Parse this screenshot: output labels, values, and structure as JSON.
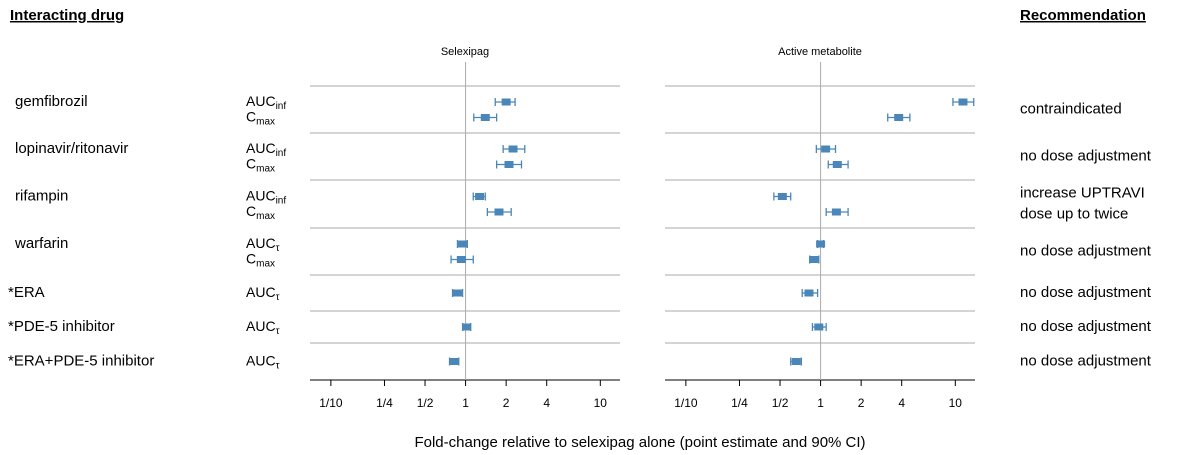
{
  "chart_data": {
    "type": "forest",
    "header_left": "Interacting drug",
    "header_right": "Recommendation",
    "xlabel": "Fold-change relative to selexipag alone (point estimate and 90% CI)",
    "color": "#4a86b8",
    "log_x": true,
    "panels": [
      {
        "title": "Selexipag",
        "xlim": [
          0.07,
          14
        ],
        "reference": 1,
        "xticks": [
          {
            "value": 0.1,
            "label": "1/10"
          },
          {
            "value": 0.25,
            "label": "1/4"
          },
          {
            "value": 0.5,
            "label": "1/2"
          },
          1,
          2,
          4,
          10
        ]
      },
      {
        "title": "Active metabolite",
        "xlim": [
          0.07,
          14
        ],
        "reference": 1,
        "xticks": [
          {
            "value": 0.1,
            "label": "1/10"
          },
          {
            "value": 0.25,
            "label": "1/4"
          },
          {
            "value": 0.5,
            "label": "1/2"
          },
          1,
          2,
          4,
          10
        ]
      }
    ],
    "rows": [
      {
        "drug": "gemfibrozil",
        "recommendation": [
          "contraindicated"
        ],
        "params": [
          {
            "label": "AUC",
            "sub": "inf",
            "values": [
              2.0,
              11.4
            ],
            "ci": [
              [
                1.66,
                2.33
              ],
              [
                9.6,
                13.7
              ]
            ]
          },
          {
            "label": "C",
            "sub": "max",
            "values": [
              1.4,
              3.8
            ],
            "ci": [
              [
                1.15,
                1.7
              ],
              [
                3.15,
                4.6
              ]
            ]
          }
        ]
      },
      {
        "drug": "lopinavir/ritonavir",
        "recommendation": [
          "no dose adjustment"
        ],
        "params": [
          {
            "label": "AUC",
            "sub": "inf",
            "values": [
              2.25,
              1.09
            ],
            "ci": [
              [
                1.9,
                2.75
              ],
              [
                0.93,
                1.29
              ]
            ]
          },
          {
            "label": "C",
            "sub": "max",
            "values": [
              2.1,
              1.33
            ],
            "ci": [
              [
                1.7,
                2.6
              ],
              [
                1.14,
                1.6
              ]
            ]
          }
        ]
      },
      {
        "drug": "rifampin",
        "recommendation": [
          "increase UPTRAVI",
          "dose up to twice"
        ],
        "params": [
          {
            "label": "AUC",
            "sub": "inf",
            "values": [
              1.27,
              0.52
            ],
            "ci": [
              [
                1.14,
                1.4
              ],
              [
                0.45,
                0.6
              ]
            ]
          },
          {
            "label": "C",
            "sub": "max",
            "values": [
              1.77,
              1.31
            ],
            "ci": [
              [
                1.45,
                2.18
              ],
              [
                1.1,
                1.6
              ]
            ]
          }
        ]
      },
      {
        "drug": "warfarin",
        "recommendation": [
          "no dose adjustment"
        ],
        "params": [
          {
            "label": "AUC",
            "sub": "τ",
            "values": [
              0.95,
              1.0
            ],
            "ci": [
              [
                0.87,
                1.03
              ],
              [
                0.95,
                1.05
              ]
            ]
          },
          {
            "label": "C",
            "sub": "max",
            "values": [
              0.93,
              0.9
            ],
            "ci": [
              [
                0.78,
                1.14
              ],
              [
                0.83,
                0.97
              ]
            ]
          }
        ]
      },
      {
        "drug": "*ERA",
        "recommendation": [
          "no dose adjustment"
        ],
        "params": [
          {
            "label": "AUC",
            "sub": "τ",
            "values": [
              0.87,
              0.82
            ],
            "ci": [
              [
                0.8,
                0.95
              ],
              [
                0.73,
                0.95
              ]
            ]
          }
        ]
      },
      {
        "drug": "*PDE-5 inhibitor",
        "recommendation": [
          "no dose adjustment"
        ],
        "params": [
          {
            "label": "AUC",
            "sub": "τ",
            "values": [
              1.02,
              0.97
            ],
            "ci": [
              [
                0.95,
                1.09
              ],
              [
                0.87,
                1.1
              ]
            ]
          }
        ]
      },
      {
        "drug": "*ERA+PDE-5 inhibitor",
        "recommendation": [
          "no dose adjustment"
        ],
        "params": [
          {
            "label": "AUC",
            "sub": "τ",
            "values": [
              0.82,
              0.66
            ],
            "ci": [
              [
                0.76,
                0.89
              ],
              [
                0.6,
                0.72
              ]
            ]
          }
        ]
      }
    ]
  }
}
